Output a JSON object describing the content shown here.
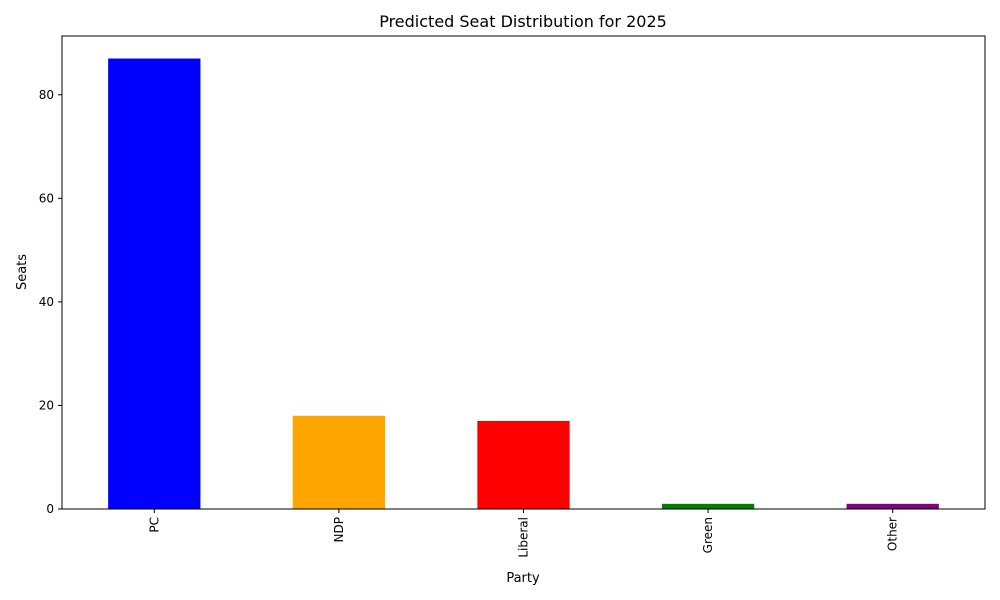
{
  "chart_data": {
    "type": "bar",
    "title": "Predicted Seat Distribution for 2025",
    "xlabel": "Party",
    "ylabel": "Seats",
    "categories": [
      "PC",
      "NDP",
      "Liberal",
      "Green",
      "Other"
    ],
    "values": [
      87,
      18,
      17,
      1,
      1
    ],
    "colors": [
      "#0000ff",
      "#ffa500",
      "#ff0000",
      "#008000",
      "#800080"
    ],
    "ylim": [
      0,
      91.35
    ],
    "yticks": [
      0,
      20,
      40,
      60,
      80
    ],
    "grid": false,
    "legend": "none"
  }
}
